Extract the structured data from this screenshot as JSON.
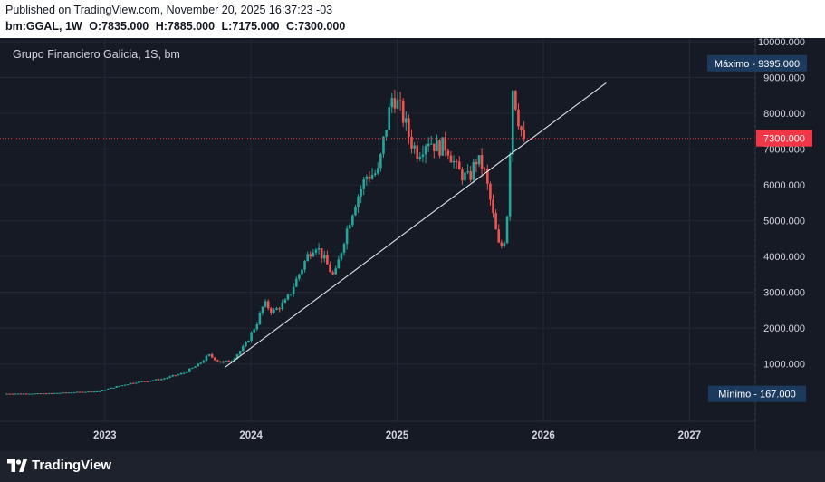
{
  "header": {
    "published": "Published on TradingView.com, November 20, 2025 16:37:23 -03",
    "symbol": "bm:GGAL, 1W",
    "open": "O:7835.000",
    "high": "H:7885.000",
    "low": "L:7175.000",
    "close": "C:7300.000"
  },
  "chart_title": "Grupo Financiero Galicia, 1S, bm",
  "footer": {
    "brand": "TradingView"
  },
  "colors": {
    "up": "#26a69a",
    "down": "#ef5350",
    "background": "#161a25",
    "grid": "#232834",
    "max_label": "#1c3a5e",
    "price_label": "#f23645"
  },
  "chart_data": {
    "type": "candlestick",
    "title": "Grupo Financiero Galicia, 1S, bm",
    "interval": "1W",
    "x_range": [
      2022.32,
      2027.45
    ],
    "ylim": [
      -600,
      10100
    ],
    "y_ticks": [
      1000,
      2000,
      3000,
      4000,
      5000,
      6000,
      7000,
      8000,
      9000,
      10000
    ],
    "y_tick_labels": [
      "1000.000",
      "2000.000",
      "3000.000",
      "4000.000",
      "5000.000",
      "6000.000",
      "7000.000",
      "8000.000",
      "9000.000",
      "10000.000"
    ],
    "x_ticks": [
      2023,
      2024,
      2025,
      2026,
      2027
    ],
    "x_tick_labels": [
      "2023",
      "2024",
      "2025",
      "2026",
      "2027"
    ],
    "last_price": 7300,
    "last_price_label": "7300.000",
    "max_label": "Máximo - 9395.000",
    "max_value": 9395,
    "min_label": "Mínimo - 167.000",
    "min_value": 167,
    "trendline": {
      "from": [
        2023.82,
        900
      ],
      "to": [
        2026.43,
        8850
      ]
    },
    "anchors": [
      [
        2022.32,
        170
      ],
      [
        2022.6,
        175
      ],
      [
        2022.8,
        210
      ],
      [
        2022.98,
        240
      ],
      [
        2023.05,
        330
      ],
      [
        2023.2,
        480
      ],
      [
        2023.4,
        580
      ],
      [
        2023.55,
        750
      ],
      [
        2023.65,
        980
      ],
      [
        2023.72,
        1250
      ],
      [
        2023.8,
        1050
      ],
      [
        2023.87,
        1080
      ],
      [
        2023.97,
        1520
      ],
      [
        2024.05,
        2150
      ],
      [
        2024.1,
        2700
      ],
      [
        2024.16,
        2450
      ],
      [
        2024.25,
        2750
      ],
      [
        2024.32,
        3350
      ],
      [
        2024.4,
        4050
      ],
      [
        2024.45,
        4350
      ],
      [
        2024.52,
        3850
      ],
      [
        2024.58,
        3400
      ],
      [
        2024.65,
        4550
      ],
      [
        2024.72,
        5500
      ],
      [
        2024.8,
        6250
      ],
      [
        2024.88,
        6350
      ],
      [
        2024.93,
        7550
      ],
      [
        2024.98,
        8550
      ],
      [
        2025.05,
        7900
      ],
      [
        2025.1,
        7250
      ],
      [
        2025.15,
        6900
      ],
      [
        2025.22,
        7300
      ],
      [
        2025.28,
        7050
      ],
      [
        2025.35,
        7100
      ],
      [
        2025.42,
        6400
      ],
      [
        2025.5,
        6150
      ],
      [
        2025.55,
        6700
      ],
      [
        2025.6,
        6500
      ],
      [
        2025.65,
        5500
      ],
      [
        2025.68,
        4800
      ],
      [
        2025.71,
        4200
      ],
      [
        2025.74,
        4400
      ],
      [
        2025.76,
        5000
      ],
      [
        2025.8,
        8750
      ],
      [
        2025.84,
        7850
      ],
      [
        2025.87,
        7300
      ]
    ]
  }
}
